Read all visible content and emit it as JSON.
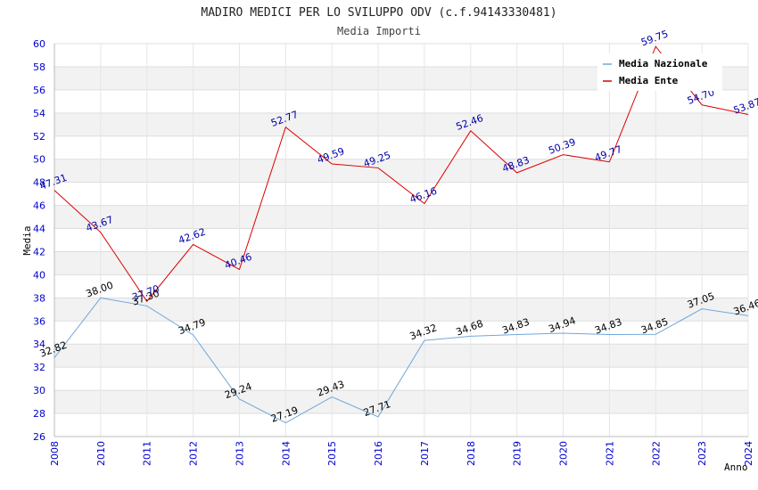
{
  "chart_data": {
    "type": "line",
    "title": "MADIRO MEDICI PER LO SVILUPPO ODV (c.f.94143330481)",
    "subtitle": "Media Importi",
    "xlabel": "Anno",
    "ylabel": "Media",
    "ylim": [
      26,
      60
    ],
    "ytick_step": 2,
    "grid": true,
    "legend_position": "top-right",
    "categories": [
      "2008",
      "2010",
      "2011",
      "2012",
      "2013",
      "2014",
      "2015",
      "2016",
      "2017",
      "2018",
      "2019",
      "2020",
      "2021",
      "2022",
      "2023",
      "2024"
    ],
    "series": [
      {
        "name": "Media Nazionale",
        "color": "#6fa8dc",
        "values": [
          32.82,
          38.0,
          37.3,
          34.79,
          29.24,
          27.19,
          29.43,
          27.71,
          34.32,
          34.68,
          34.83,
          34.94,
          34.83,
          34.85,
          37.05,
          36.46
        ],
        "labels": [
          "32.82",
          "38.00",
          "37.30",
          "34.79",
          "29.24",
          "27.19",
          "29.43",
          "27.71",
          "34.32",
          "34.68",
          "34.83",
          "34.94",
          "34.83",
          "34.85",
          "37.05",
          "36.46"
        ]
      },
      {
        "name": "Media Ente",
        "color": "#dd0000",
        "values": [
          47.31,
          43.67,
          37.7,
          42.62,
          40.46,
          52.77,
          49.59,
          49.25,
          46.16,
          52.46,
          48.83,
          50.39,
          49.77,
          59.75,
          54.7,
          53.87
        ],
        "labels": [
          "47.31",
          "43.67",
          "37.70",
          "42.62",
          "40.46",
          "52.77",
          "49.59",
          "49.25",
          "46.16",
          "52.46",
          "48.83",
          "50.39",
          "49.77",
          "59.75",
          "54.70",
          "53.87"
        ]
      }
    ]
  }
}
